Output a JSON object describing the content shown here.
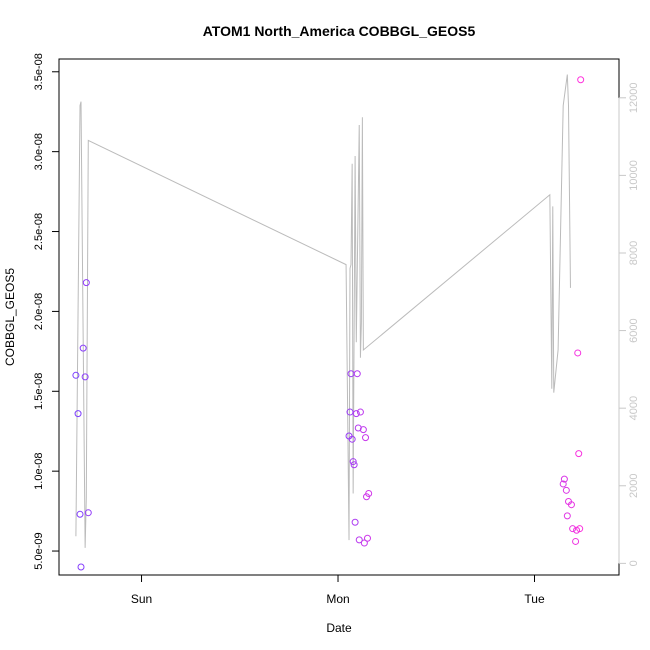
{
  "chart_data": {
    "type": "scatter",
    "title": "ATOM1 North_America COBBGL_GEOS5",
    "xlabel": "Date",
    "ylabel": "COBBGL_GEOS5",
    "x_ticks": [
      "Sun",
      "Mon",
      "Tue"
    ],
    "x_tick_positions": [
      0.5,
      1.5,
      2.5
    ],
    "xlim": [
      0.08,
      2.93
    ],
    "ylim": [
      3.5e-09,
      3.58e-08
    ],
    "y_ticks": [
      5e-09,
      1e-08,
      1.5e-08,
      2e-08,
      2.5e-08,
      3e-08,
      3.5e-08
    ],
    "y_tick_labels": [
      "5.0e-09",
      "1.0e-08",
      "1.5e-08",
      "2.0e-08",
      "2.5e-08",
      "3.0e-08",
      "3.5e-08"
    ],
    "y2lim": [
      -300,
      13000
    ],
    "y2_ticks": [
      0,
      2000,
      4000,
      6000,
      8000,
      10000,
      12000
    ],
    "y2_tick_labels": [
      "0",
      "2000",
      "4000",
      "6000",
      "8000",
      "10000",
      "12000"
    ],
    "colors": {
      "start_point": "#7b3fff",
      "end_point": "#ff33dd",
      "line": "#bbbbbb",
      "axis": "#000000",
      "secondary_axis": "#c8c8c8"
    },
    "points": [
      {
        "x": 0.166,
        "y": 1.6e-08
      },
      {
        "x": 0.177,
        "y": 1.36e-08
      },
      {
        "x": 0.187,
        "y": 7.3e-09
      },
      {
        "x": 0.192,
        "y": 4e-09
      },
      {
        "x": 0.203,
        "y": 1.77e-08
      },
      {
        "x": 0.213,
        "y": 1.59e-08
      },
      {
        "x": 0.219,
        "y": 2.18e-08
      },
      {
        "x": 0.229,
        "y": 7.4e-09
      },
      {
        "x": 1.556,
        "y": 1.22e-08
      },
      {
        "x": 1.561,
        "y": 1.37e-08
      },
      {
        "x": 1.566,
        "y": 1.61e-08
      },
      {
        "x": 1.572,
        "y": 1.2e-08
      },
      {
        "x": 1.577,
        "y": 1.06e-08
      },
      {
        "x": 1.582,
        "y": 1.04e-08
      },
      {
        "x": 1.587,
        "y": 6.8e-09
      },
      {
        "x": 1.593,
        "y": 1.36e-08
      },
      {
        "x": 1.598,
        "y": 1.61e-08
      },
      {
        "x": 1.603,
        "y": 1.27e-08
      },
      {
        "x": 1.608,
        "y": 5.7e-09
      },
      {
        "x": 1.614,
        "y": 1.37e-08
      },
      {
        "x": 1.629,
        "y": 1.26e-08
      },
      {
        "x": 1.634,
        "y": 5.5e-09
      },
      {
        "x": 1.64,
        "y": 1.21e-08
      },
      {
        "x": 1.645,
        "y": 8.4e-09
      },
      {
        "x": 1.65,
        "y": 5.8e-09
      },
      {
        "x": 1.656,
        "y": 8.6e-09
      },
      {
        "x": 2.646,
        "y": 9.2e-09
      },
      {
        "x": 2.652,
        "y": 9.5e-09
      },
      {
        "x": 2.662,
        "y": 8.8e-09
      },
      {
        "x": 2.667,
        "y": 7.2e-09
      },
      {
        "x": 2.673,
        "y": 8.1e-09
      },
      {
        "x": 2.688,
        "y": 7.9e-09
      },
      {
        "x": 2.694,
        "y": 6.4e-09
      },
      {
        "x": 2.709,
        "y": 5.6e-09
      },
      {
        "x": 2.714,
        "y": 6.3e-09
      },
      {
        "x": 2.72,
        "y": 1.74e-08
      },
      {
        "x": 2.725,
        "y": 1.11e-08
      },
      {
        "x": 2.73,
        "y": 6.4e-09
      },
      {
        "x": 2.735,
        "y": 3.45e-08
      }
    ],
    "line_secondary": [
      {
        "x": 0.166,
        "y": 700
      },
      {
        "x": 0.187,
        "y": 11800
      },
      {
        "x": 0.192,
        "y": 11900
      },
      {
        "x": 0.203,
        "y": 5800
      },
      {
        "x": 0.213,
        "y": 400
      },
      {
        "x": 0.219,
        "y": 1700
      },
      {
        "x": 0.229,
        "y": 10900
      },
      {
        "x": 1.541,
        "y": 7700
      },
      {
        "x": 1.556,
        "y": 600
      },
      {
        "x": 1.561,
        "y": 7600
      },
      {
        "x": 1.566,
        "y": 7700
      },
      {
        "x": 1.572,
        "y": 10300
      },
      {
        "x": 1.577,
        "y": 1800
      },
      {
        "x": 1.582,
        "y": 6100
      },
      {
        "x": 1.587,
        "y": 10500
      },
      {
        "x": 1.593,
        "y": 5700
      },
      {
        "x": 1.608,
        "y": 11300
      },
      {
        "x": 1.614,
        "y": 5300
      },
      {
        "x": 1.619,
        "y": 6200
      },
      {
        "x": 1.624,
        "y": 11500
      },
      {
        "x": 1.629,
        "y": 5500
      },
      {
        "x": 2.578,
        "y": 9500
      },
      {
        "x": 2.588,
        "y": 4500
      },
      {
        "x": 2.593,
        "y": 9200
      },
      {
        "x": 2.598,
        "y": 4400
      },
      {
        "x": 2.62,
        "y": 5500
      },
      {
        "x": 2.646,
        "y": 11800
      },
      {
        "x": 2.667,
        "y": 12600
      },
      {
        "x": 2.673,
        "y": 11800
      },
      {
        "x": 2.683,
        "y": 7100
      }
    ]
  }
}
